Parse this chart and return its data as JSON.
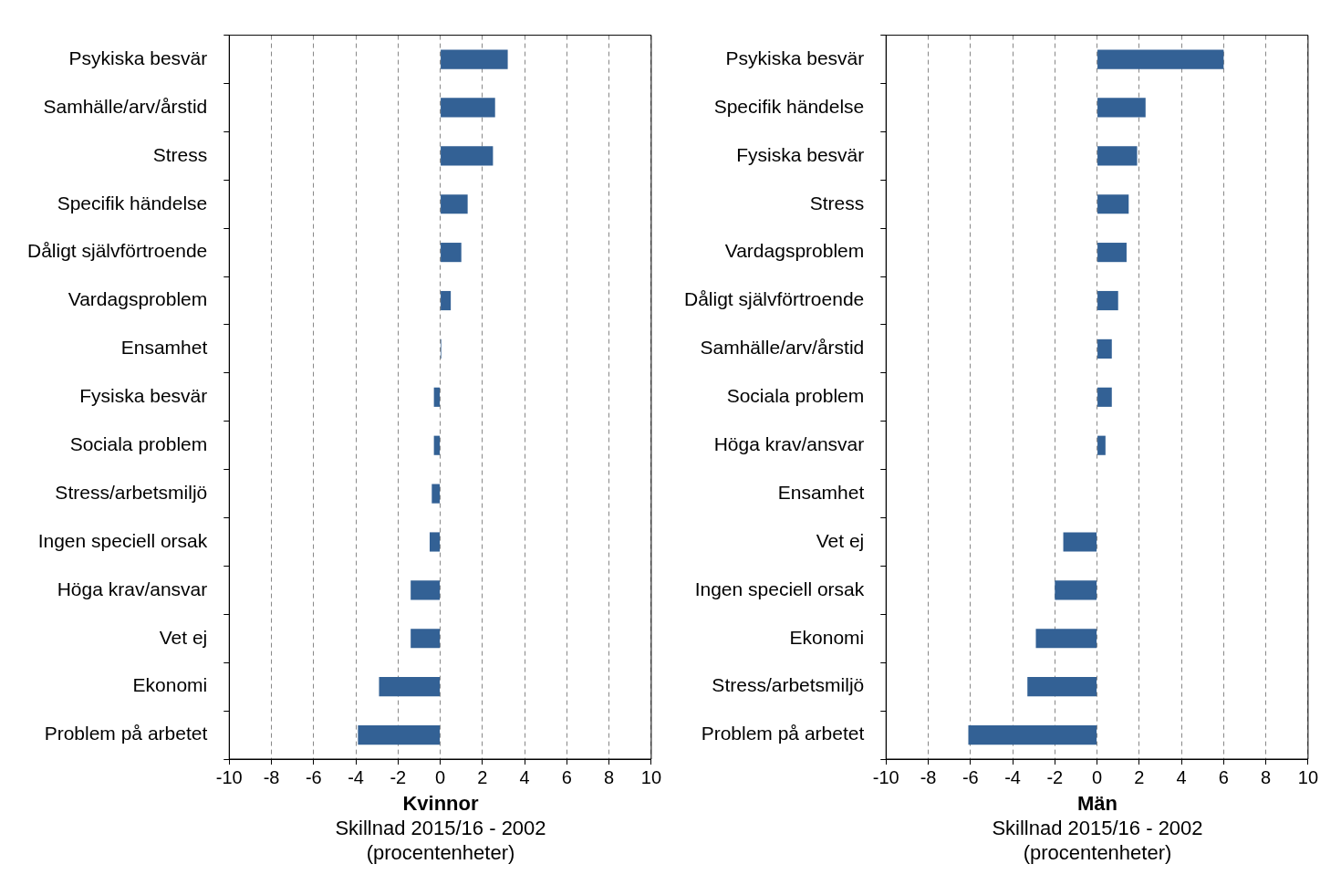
{
  "chart_data": [
    {
      "type": "bar",
      "orientation": "horizontal",
      "title": "Kvinnor",
      "xlabel": "Skillnad 2015/16 - 2002 (procentenheter)",
      "categories": [
        "Psykiska besvär",
        "Samhälle/arv/årstid",
        "Stress",
        "Specifik händelse",
        "Dåligt självförtroende",
        "Vardagsproblem",
        "Ensamhet",
        "Fysiska besvär",
        "Sociala problem",
        "Stress/arbetsmiljö",
        "Ingen speciell orsak",
        "Höga krav/ansvar",
        "Vet ej",
        "Ekonomi",
        "Problem på arbetet"
      ],
      "values": [
        3.2,
        2.6,
        2.5,
        1.3,
        1.0,
        0.5,
        0.05,
        -0.3,
        -0.3,
        -0.4,
        -0.5,
        -1.4,
        -1.4,
        -2.9,
        -3.9
      ],
      "color": "#336195",
      "xlim": [
        -10,
        10
      ],
      "xticks": [
        -10,
        -8,
        -6,
        -4,
        -2,
        0,
        2,
        4,
        6,
        8,
        10
      ],
      "grid": "x",
      "legend": false
    },
    {
      "type": "bar",
      "orientation": "horizontal",
      "title": "Män",
      "xlabel": "Skillnad 2015/16 - 2002 (procentenheter)",
      "categories": [
        "Psykiska besvär",
        "Specifik händelse",
        "Fysiska besvär",
        "Stress",
        "Vardagsproblem",
        "Dåligt självförtroende",
        "Samhälle/arv/årstid",
        "Sociala problem",
        "Höga krav/ansvar",
        "Ensamhet",
        "Vet ej",
        "Ingen speciell orsak",
        "Ekonomi",
        "Stress/arbetsmiljö",
        "Problem på arbetet"
      ],
      "values": [
        6.0,
        2.3,
        1.9,
        1.5,
        1.4,
        1.0,
        0.7,
        0.7,
        0.4,
        0,
        -1.6,
        -2.0,
        -2.9,
        -3.3,
        -6.1
      ],
      "color": "#336195",
      "xlim": [
        -10,
        10
      ],
      "xticks": [
        -10,
        -8,
        -6,
        -4,
        -2,
        0,
        2,
        4,
        6,
        8,
        10
      ],
      "grid": "x",
      "legend": false
    }
  ]
}
